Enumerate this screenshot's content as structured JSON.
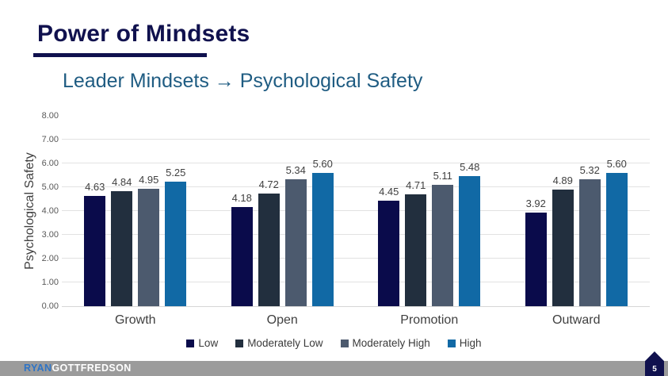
{
  "slide": {
    "title": "Power of Mindsets",
    "subtitle": "Leader Mindsets → Psychological Safety",
    "page_number": "5",
    "brand": {
      "first": "RYAN",
      "second": "GOTTFREDSON"
    }
  },
  "colors": {
    "title": "#10114E",
    "title_underline": "#10114E",
    "subtitle": "#1F5C82",
    "axis_text": "#595959",
    "label_text": "#404040",
    "gridline": "#E2E2E2",
    "axis_line": "#D6D6D6",
    "footer_bar": "#9B9B9B",
    "brand_first": "#2E74C6",
    "brand_second": "#FFFFFF",
    "badge_bg": "#10114E",
    "badge_text": "#FFFFFF"
  },
  "chart_data": {
    "type": "bar",
    "title": "",
    "xlabel": "",
    "ylabel": "Psychological Safety",
    "ylim": [
      0,
      8
    ],
    "ytick_step": 1,
    "ytick_decimals": 2,
    "grid": true,
    "gridlines_at": [
      1,
      2,
      3,
      4,
      5,
      6,
      7
    ],
    "legend_position": "bottom",
    "data_labels": true,
    "label_decimals": 2,
    "categories": [
      "Growth",
      "Open",
      "Promotion",
      "Outward"
    ],
    "series": [
      {
        "name": "Low",
        "color": "#0A0B4B",
        "values": [
          4.63,
          4.18,
          4.45,
          3.92
        ]
      },
      {
        "name": "Moderately Low",
        "color": "#222F3E",
        "values": [
          4.84,
          4.72,
          4.71,
          4.89
        ]
      },
      {
        "name": "Moderately High",
        "color": "#4C5A6E",
        "values": [
          4.95,
          5.34,
          5.11,
          5.32
        ]
      },
      {
        "name": "High",
        "color": "#1169A5",
        "values": [
          5.25,
          5.6,
          5.48,
          5.6
        ]
      }
    ]
  }
}
